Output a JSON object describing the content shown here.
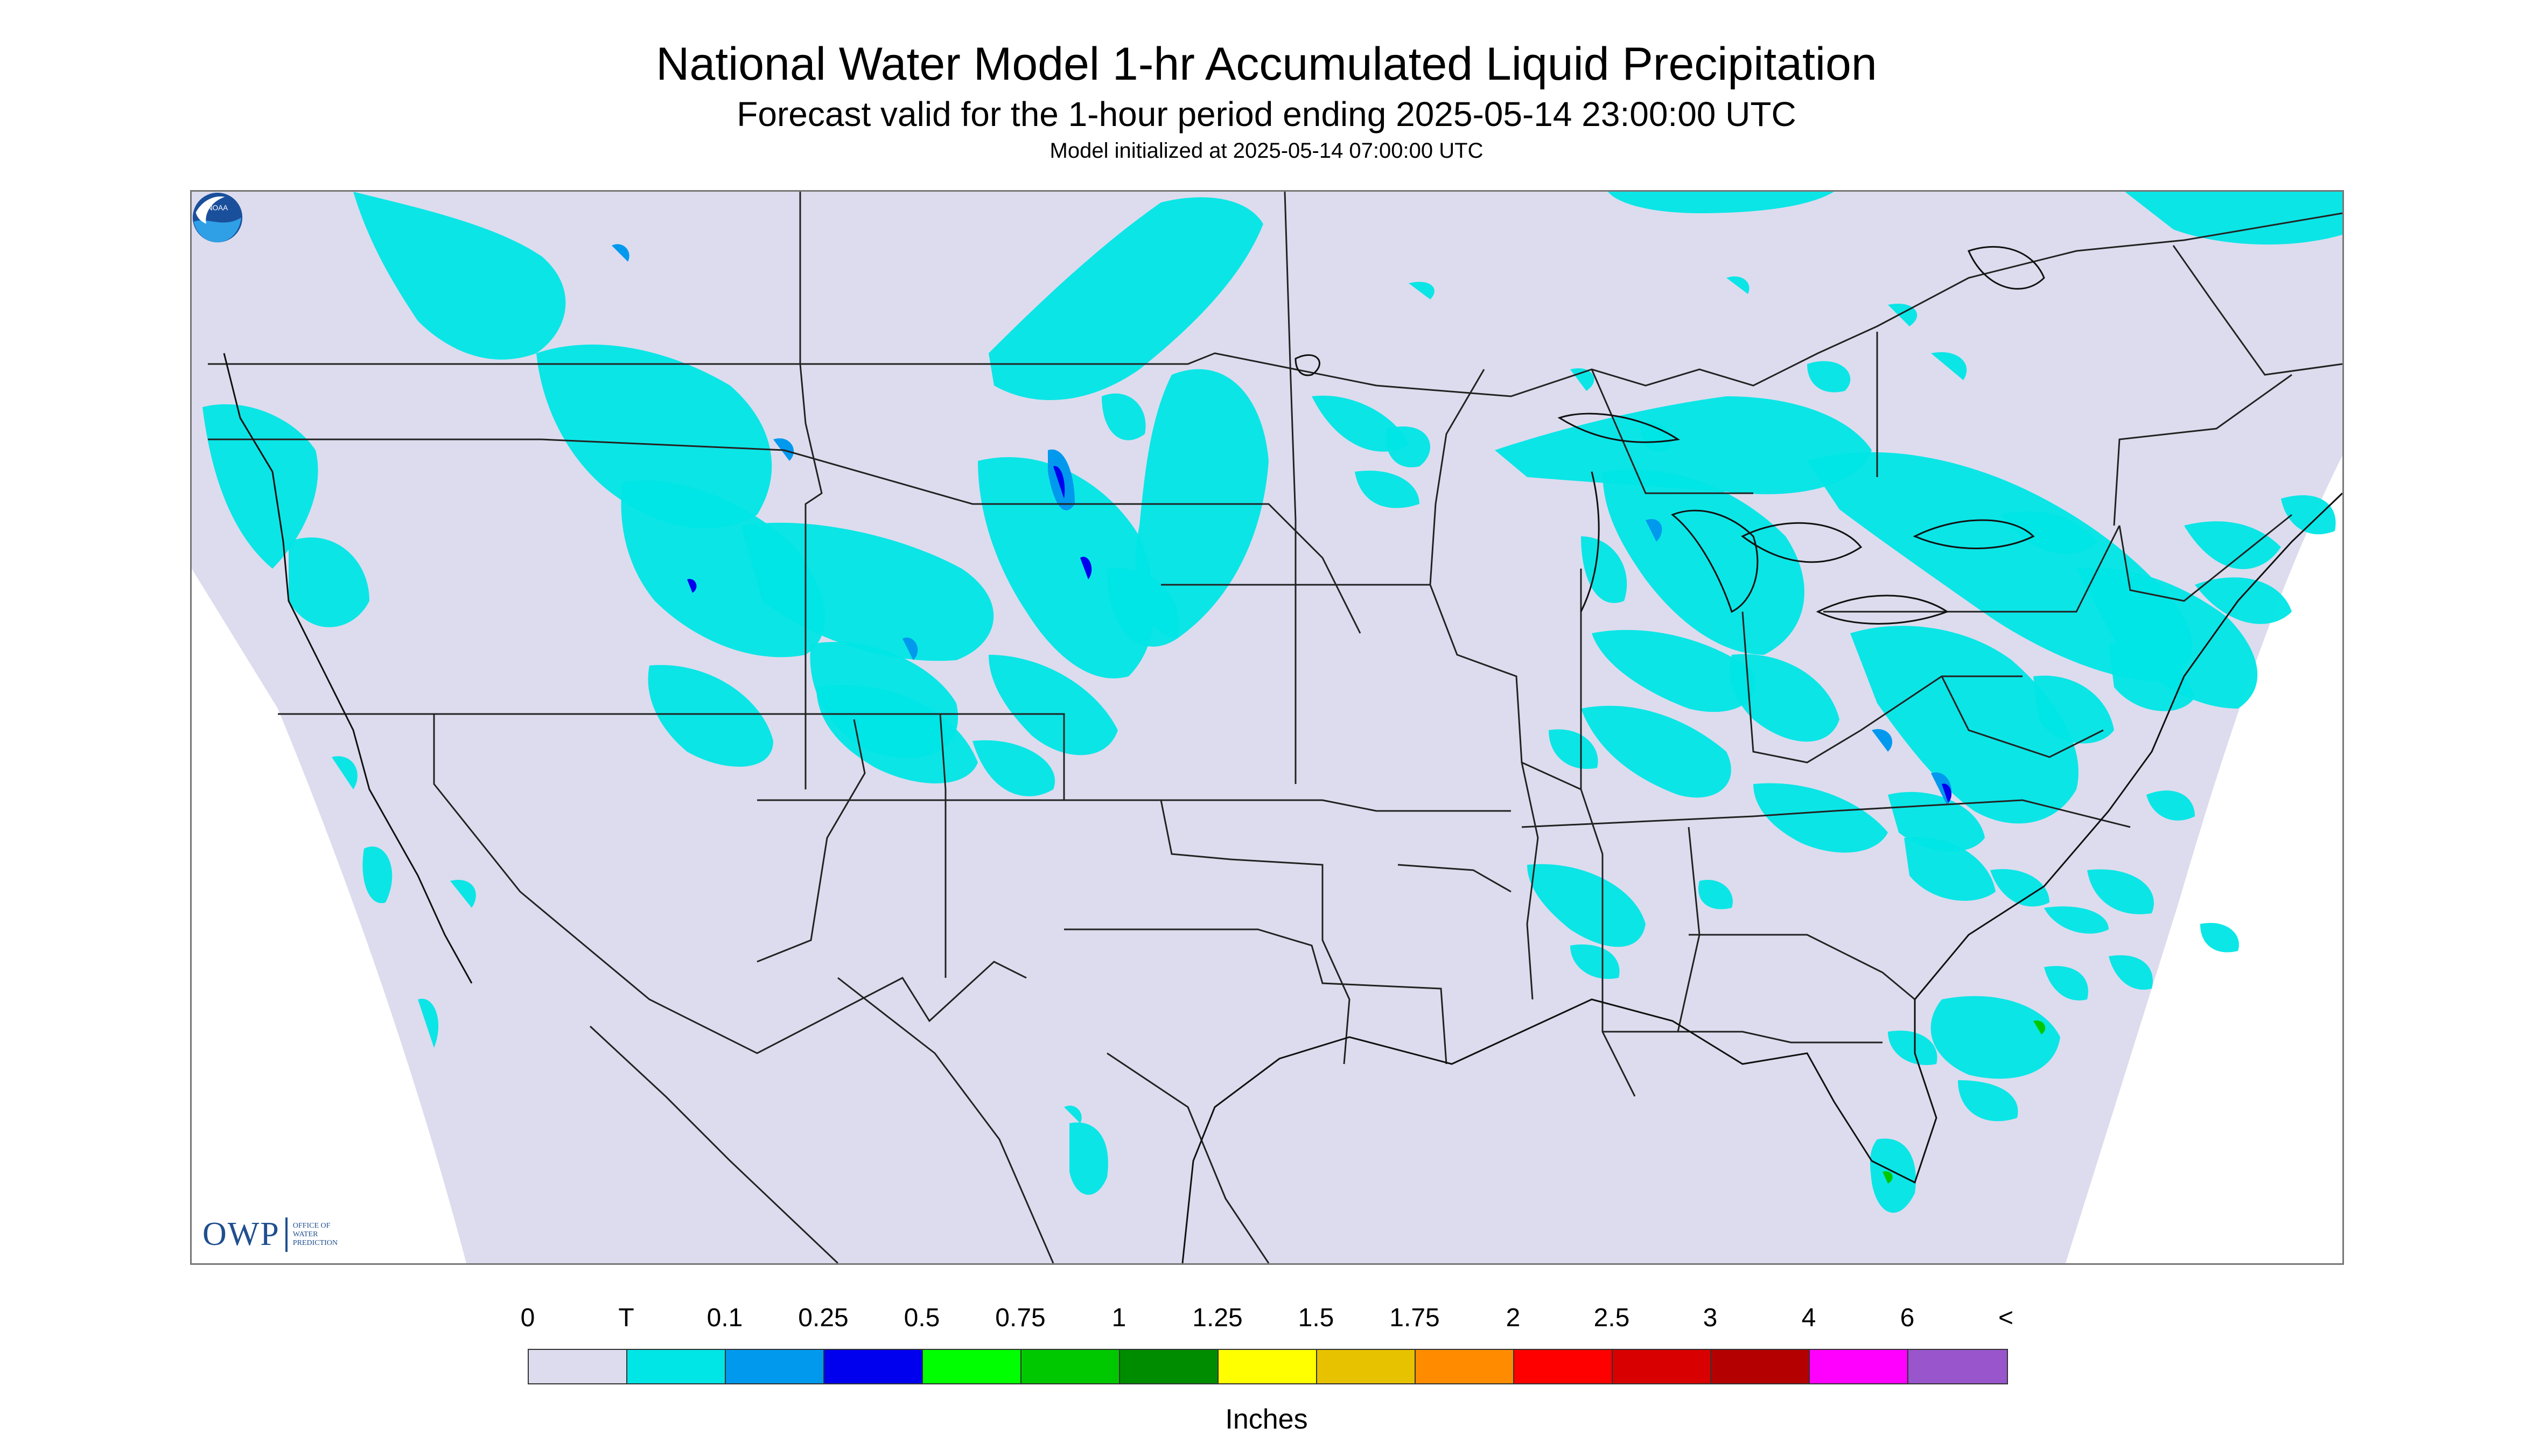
{
  "header": {
    "title": "National Water Model 1-hr Accumulated Liquid Precipitation",
    "subtitle": "Forecast valid for the 1-hour period ending 2025-05-14 23:00:00 UTC",
    "init_line": "Model initialized at 2025-05-14 07:00:00 UTC"
  },
  "map": {
    "background_color": "#dcdcee",
    "outside_domain_color": "#ffffff",
    "boundary_color": "#222222",
    "logo_left": {
      "big": "OWP",
      "line1": "OFFICE OF",
      "line2": "WATER",
      "line3": "PREDICTION"
    },
    "logo_right": {
      "text": "NOAA",
      "icon": "noaa-logo-icon"
    }
  },
  "legend": {
    "tick_labels": [
      "0",
      "T",
      "0.1",
      "0.25",
      "0.5",
      "0.75",
      "1",
      "1.25",
      "1.5",
      "1.75",
      "2",
      "2.5",
      "3",
      "4",
      "6",
      "<"
    ],
    "colors": [
      "#dcdcee",
      "#00e5e5",
      "#0099ee",
      "#0000ee",
      "#00ff00",
      "#00c800",
      "#008c00",
      "#ffff00",
      "#e6c200",
      "#ff8c00",
      "#ff0000",
      "#d80000",
      "#b40000",
      "#ff00ff",
      "#9955cc"
    ],
    "units": "Inches"
  }
}
